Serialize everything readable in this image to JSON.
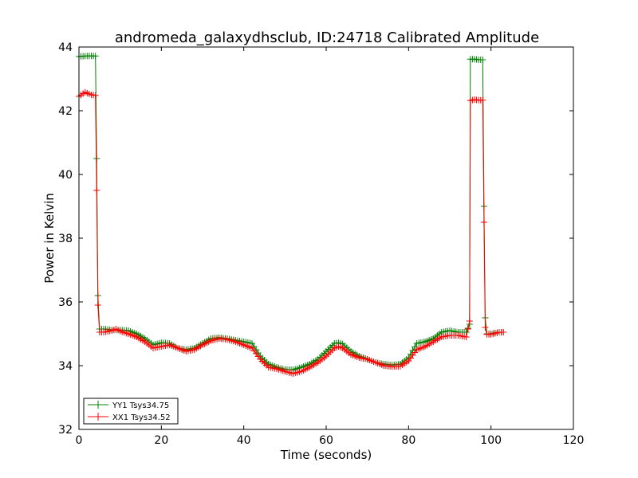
{
  "chart_data": {
    "type": "line",
    "title": "andromeda_galaxydhsclub, ID:24718 Calibrated Amplitude",
    "xlabel": "Time (seconds)",
    "ylabel": "Power in Kelvin",
    "xlim": [
      0,
      120
    ],
    "ylim": [
      32,
      44
    ],
    "xticks": [
      "0",
      "20",
      "40",
      "60",
      "80",
      "100",
      "120"
    ],
    "yticks": [
      "32",
      "34",
      "36",
      "38",
      "40",
      "42",
      "44"
    ],
    "grid": false,
    "legend_position": "lower-left",
    "series": [
      {
        "name": "YY1 Tsys34.75",
        "color": "#008000",
        "x": [
          0,
          2,
          4,
          4.3,
          4.6,
          5,
          6,
          8,
          9,
          10,
          12,
          14,
          16,
          18,
          20,
          22,
          24,
          26,
          28,
          30,
          32,
          34,
          36,
          38,
          40,
          42,
          44,
          46,
          48,
          50,
          52,
          54,
          56,
          58,
          60,
          62,
          63,
          64,
          66,
          68,
          70,
          72,
          74,
          76,
          78,
          80,
          82,
          84,
          86,
          88,
          90,
          92,
          94,
          94.8,
          95,
          96,
          97,
          98,
          98.3,
          98.6,
          99,
          100,
          102,
          103
        ],
        "y": [
          43.7,
          43.72,
          43.72,
          40.5,
          36.2,
          35.15,
          35.15,
          35.12,
          35.12,
          35.12,
          35.1,
          35.0,
          34.85,
          34.65,
          34.72,
          34.7,
          34.55,
          34.5,
          34.55,
          34.7,
          34.85,
          34.88,
          34.85,
          34.8,
          34.75,
          34.7,
          34.3,
          34.05,
          33.95,
          33.88,
          33.87,
          33.95,
          34.05,
          34.2,
          34.45,
          34.7,
          34.72,
          34.68,
          34.45,
          34.3,
          34.2,
          34.1,
          34.05,
          34.02,
          34.05,
          34.25,
          34.7,
          34.75,
          34.85,
          35.05,
          35.1,
          35.05,
          35.05,
          35.3,
          43.62,
          43.62,
          43.6,
          43.6,
          39.0,
          35.5,
          35.0,
          35.0,
          35.05,
          35.05
        ]
      },
      {
        "name": "XX1 Tsys34.52",
        "color": "#ff0000",
        "x": [
          0,
          1.5,
          3,
          4,
          4.3,
          4.6,
          5,
          6,
          8,
          9,
          10,
          12,
          14,
          16,
          18,
          20,
          22,
          24,
          26,
          28,
          30,
          32,
          34,
          36,
          38,
          40,
          42,
          44,
          46,
          48,
          50,
          52,
          54,
          56,
          58,
          60,
          62,
          63,
          64,
          66,
          68,
          70,
          72,
          74,
          76,
          78,
          80,
          82,
          84,
          86,
          88,
          90,
          92,
          94,
          94.8,
          95,
          96,
          97,
          98,
          98.3,
          98.6,
          99,
          100,
          102,
          103
        ],
        "y": [
          42.45,
          42.58,
          42.5,
          42.48,
          39.5,
          35.9,
          35.05,
          35.05,
          35.1,
          35.15,
          35.08,
          35.0,
          34.9,
          34.75,
          34.55,
          34.6,
          34.65,
          34.55,
          34.45,
          34.5,
          34.65,
          34.78,
          34.85,
          34.82,
          34.75,
          34.65,
          34.55,
          34.2,
          33.95,
          33.9,
          33.82,
          33.75,
          33.82,
          33.95,
          34.1,
          34.3,
          34.55,
          34.6,
          34.55,
          34.35,
          34.25,
          34.2,
          34.1,
          34.0,
          33.97,
          33.98,
          34.15,
          34.5,
          34.6,
          34.75,
          34.9,
          34.95,
          34.95,
          34.9,
          35.4,
          42.32,
          42.35,
          42.33,
          42.33,
          38.5,
          35.2,
          34.98,
          34.98,
          35.05,
          35.05
        ]
      }
    ]
  }
}
